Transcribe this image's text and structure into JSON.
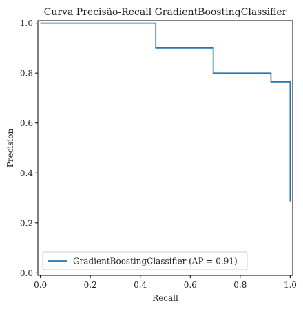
{
  "chart_data": {
    "type": "line",
    "title": "Curva Precisão-Recall GradientBoostingClassifier",
    "xlabel": "Recall",
    "ylabel": "Precision",
    "xlim": [
      -0.01,
      1.01
    ],
    "ylim": [
      -0.01,
      1.01
    ],
    "x_ticks": [
      "0.0",
      "0.2",
      "0.4",
      "0.6",
      "0.8",
      "1.0"
    ],
    "y_ticks": [
      "0.0",
      "0.2",
      "0.4",
      "0.6",
      "0.8",
      "1.0"
    ],
    "grid": false,
    "legend_position": "lower-left",
    "series": [
      {
        "name": "GradientBoostingClassifier (AP = 0.91)",
        "color": "#1f77b4",
        "drawstyle": "steps",
        "x": [
          0.0,
          0.462,
          0.462,
          0.692,
          0.692,
          0.923,
          0.923,
          1.0,
          1.0
        ],
        "y": [
          1.0,
          1.0,
          0.9,
          0.9,
          0.8,
          0.8,
          0.765,
          0.765,
          0.286
        ]
      }
    ]
  }
}
